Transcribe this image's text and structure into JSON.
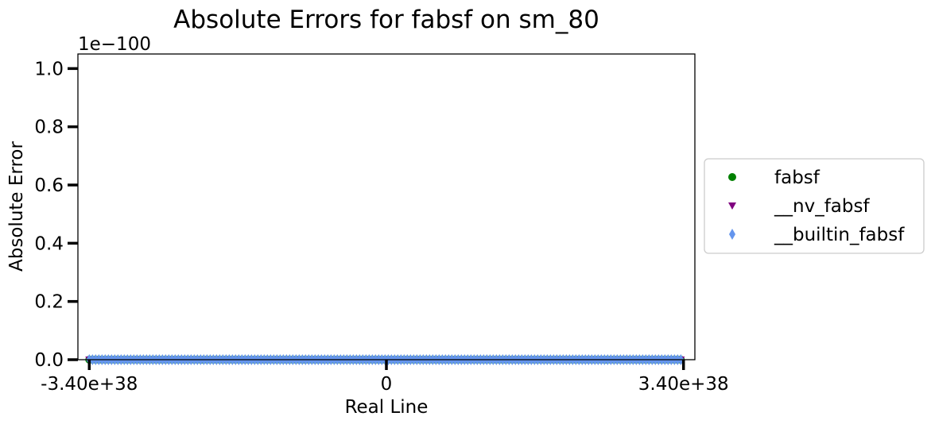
{
  "chart_data": {
    "type": "scatter",
    "title": "Absolute Errors for fabsf on sm_80",
    "xlabel": "Real Line",
    "ylabel": "Absolute Error",
    "y_offset_text": "1e−100",
    "xlim": [
      -3.53e+38,
      3.53e+38
    ],
    "ylim": [
      0,
      1.05
    ],
    "x_ticks": [
      {
        "value": -3.4e+38,
        "label": "-3.40e+38"
      },
      {
        "value": 0,
        "label": "0"
      },
      {
        "value": 3.4e+38,
        "label": "3.40e+38"
      }
    ],
    "y_ticks": [
      {
        "value": 0.0,
        "label": "0.0"
      },
      {
        "value": 0.2,
        "label": "0.2"
      },
      {
        "value": 0.4,
        "label": "0.4"
      },
      {
        "value": 0.6,
        "label": "0.6"
      },
      {
        "value": 0.8,
        "label": "0.8"
      },
      {
        "value": 1.0,
        "label": "1.0"
      }
    ],
    "grid": false,
    "legend_position": "outside-right",
    "series": [
      {
        "name": "fabsf",
        "marker": "circle",
        "color": "#008000",
        "x_range": [
          -3.4e+38,
          3.4e+38
        ],
        "y": 0
      },
      {
        "name": "__nv_fabsf",
        "marker": "triangle-down",
        "color": "#800080",
        "x_range": [
          -3.4e+38,
          3.4e+38
        ],
        "y": 0
      },
      {
        "name": "__builtin_fabsf",
        "marker": "thin-diamond",
        "color": "#6495ED",
        "x_range": [
          -3.4e+38,
          3.4e+38
        ],
        "y": 0
      }
    ]
  }
}
